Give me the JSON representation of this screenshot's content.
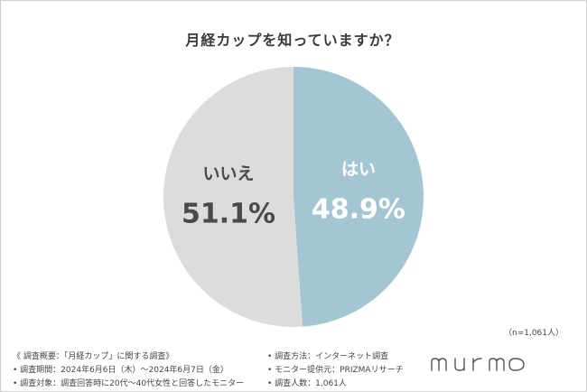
{
  "title": "月経カップを知っていますか？",
  "sample_size": "（n=1,061人）",
  "colors": {
    "yes": "#a4c6d2",
    "no": "#dcdcdc",
    "text": "#3a3a3a"
  },
  "chart_data": {
    "type": "pie",
    "title": "月経カップを知っていますか？",
    "slices": [
      {
        "label": "はい",
        "value": 48.9,
        "display": "48.9%",
        "color": "#a4c6d2"
      },
      {
        "label": "いいえ",
        "value": 51.1,
        "display": "51.1%",
        "color": "#dcdcdc"
      }
    ],
    "start": "top",
    "direction": "clockwise",
    "legend": "none"
  },
  "footer": {
    "left": [
      "《 調査概要：「月経カップ」に関する調査》",
      "• 調査期間：2024年6月6日（木）～2024年6月7日（金）",
      "• 調査対象：調査回答時に20代～40代女性と回答したモニター"
    ],
    "right": [
      "• 調査方法：インターネット調査",
      "• モニター提供元：PRIZMAリサーチ",
      "• 調査人数：1,061人"
    ]
  },
  "logo_text": "murmo"
}
